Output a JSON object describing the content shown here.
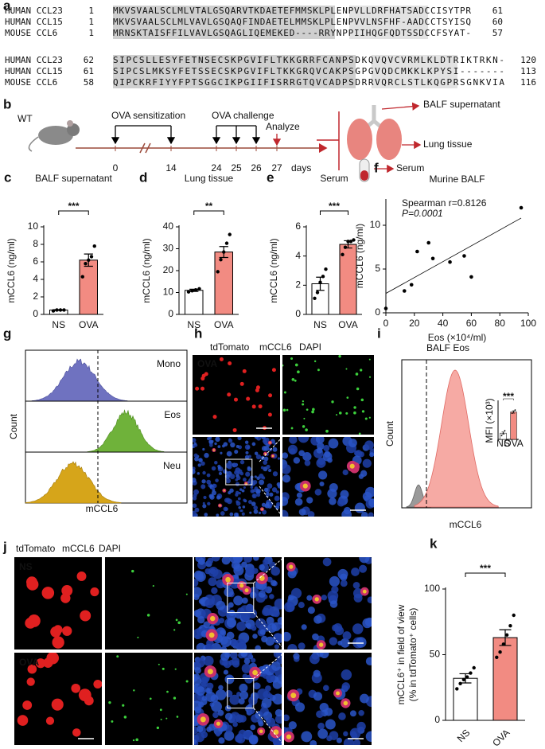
{
  "figure": {
    "alignment": {
      "label": "a",
      "blocks": [
        [
          {
            "name": "HUMAN CCL23",
            "start": "1",
            "seq": "MKVSVAALSCLMLVTALGSQARVTKDAETEFMMSKLPLENPVLLDRFHATSADCCISYTPR",
            "end": "61"
          },
          {
            "name": "HUMAN CCL15",
            "start": "1",
            "seq": "MKVSVAALSCLMLVAVLGSQAQFINDAETELMMSKLPLENPVVLNSFHF-AADCCTSYISQ",
            "end": "60"
          },
          {
            "name": "MOUSE CCL6",
            "start": "1",
            "seq": "MRNSKTAISFFILVAVLGSQAGLIQEMEKED----RRYNPPIIHQGFQDTSSDCCFSYAT-",
            "end": "57"
          }
        ],
        [
          {
            "name": "HUMAN CCL23",
            "start": "62",
            "seq": "SIPCSLLESYFETNSECSKPGVIFLTKKGRRFCANPSDKQVQVCVRMLKLDTRIKTRKN-",
            "end": "120"
          },
          {
            "name": "HUMAN CCL15",
            "start": "61",
            "seq": "SIPCSLMKSYFETSSECSKPGVIFLTKKGRQVCAKPSGPGVQDCMKKLKPYSI-------",
            "end": "113"
          },
          {
            "name": "MOUSE CCL6",
            "start": "58",
            "seq": "QIPCKRFIYYFPTSGGCIKPGIIFISRRGTQVCADPSDRRVQRCLSTLKQGPRSGNKVIA",
            "end": "116"
          }
        ]
      ]
    },
    "timeline": {
      "label": "b",
      "mouse": "WT",
      "sensitization": "OVA sensitization",
      "challenge": "OVA challenge",
      "analyze": "Analyze",
      "days": [
        "0",
        "14",
        "24",
        "25",
        "26",
        "27"
      ],
      "unit": "days",
      "outputs": [
        "BALF supernatant",
        "Lung tissue",
        "Serum"
      ]
    },
    "flow_g": {
      "label": "g",
      "populations": [
        "Mono",
        "Eos",
        "Neu"
      ],
      "ylabel": "Count",
      "xlabel": "mCCL6"
    },
    "staining_h": {
      "label": "h",
      "channels": [
        "tdTomato",
        "mCCL6",
        "DAPI"
      ],
      "group": "OVA"
    },
    "flow_i": {
      "label": "i",
      "title": "BALF Eos",
      "ylabel": "Count",
      "xlabel": "mCCL6"
    },
    "staining_j": {
      "label": "j",
      "channels": [
        "tdTomato",
        "mCCL6",
        "DAPI"
      ],
      "groups": [
        "NS",
        "OVA"
      ]
    }
  },
  "chart_data": [
    {
      "type": "bar",
      "label": "c",
      "title": "BALF supernatant",
      "ylabel": "mCCL6 (ng/ml)",
      "categories": [
        "NS",
        "OVA"
      ],
      "values": [
        0.5,
        6.2
      ],
      "errors": [
        0.05,
        0.7
      ],
      "points": [
        [
          0.4,
          0.5,
          0.5,
          0.5
        ],
        [
          4.3,
          5.8,
          6.2,
          6.6,
          7.8
        ]
      ],
      "colors": [
        "#ffffff",
        "#f28b82"
      ],
      "significance": "***",
      "ylim": [
        0,
        10
      ],
      "yticks": [
        0,
        2,
        4,
        6,
        8,
        10
      ]
    },
    {
      "type": "bar",
      "label": "d",
      "title": "Lung tissue",
      "ylabel": "mCCL6 (ng/ml)",
      "categories": [
        "NS",
        "OVA"
      ],
      "values": [
        11,
        28.5
      ],
      "errors": [
        0.5,
        2.5
      ],
      "points": [
        [
          10.3,
          10.8,
          11.2,
          11.7
        ],
        [
          19.5,
          25,
          28.5,
          32.5,
          36.5
        ]
      ],
      "colors": [
        "#ffffff",
        "#f28b82"
      ],
      "significance": "**",
      "ylim": [
        0,
        40
      ],
      "yticks": [
        0,
        10,
        20,
        30,
        40
      ]
    },
    {
      "type": "bar",
      "label": "e",
      "title": "Serum",
      "ylabel": "mCCL6 (ng/ml)",
      "categories": [
        "NS",
        "OVA"
      ],
      "values": [
        2.1,
        4.8
      ],
      "errors": [
        0.45,
        0.25
      ],
      "points": [
        [
          1.1,
          1.5,
          2.2,
          2.6,
          3.1
        ],
        [
          4.1,
          4.6,
          5.0,
          5.0,
          5.1
        ]
      ],
      "colors": [
        "#ffffff",
        "#f28b82"
      ],
      "significance": "***",
      "ylim": [
        0,
        6
      ],
      "yticks": [
        0,
        2,
        4,
        6
      ]
    },
    {
      "type": "scatter",
      "label": "f",
      "title": "Murine BALF",
      "xlabel": "Eos (×10⁴/ml)",
      "ylabel": "mCCL6 (ng/ml)",
      "annotations": [
        "Spearman r=0.8126",
        "P=0.0001"
      ],
      "x": [
        0,
        13,
        18,
        22,
        30,
        33,
        45,
        55,
        60,
        95
      ],
      "values": [
        0.5,
        2.5,
        3.2,
        7,
        8,
        6.2,
        5.8,
        6.5,
        4.1,
        12
      ],
      "xlim": [
        0,
        100
      ],
      "ylim": [
        0,
        13
      ],
      "xticks": [
        0,
        20,
        40,
        60,
        80,
        100
      ],
      "yticks": [
        0,
        5,
        10
      ]
    },
    {
      "type": "bar",
      "ylabel": "MFI (×10³)",
      "categories": [
        "NS",
        "OVA"
      ],
      "values": [
        0.5,
        2.2
      ],
      "errors": [
        0.1,
        0.1
      ],
      "points": [
        [
          0.3,
          0.5,
          0.7
        ],
        [
          2.1,
          2.2,
          2.35
        ]
      ],
      "colors": [
        "#ffffff",
        "#f28b82"
      ],
      "significance": "***",
      "ylim": [
        0,
        3
      ]
    },
    {
      "type": "bar",
      "label": "k",
      "ylabel": [
        "mCCL6⁺ in field of view",
        "(% in tdTomato⁺ cells)"
      ],
      "categories": [
        "NS",
        "OVA"
      ],
      "values": [
        32,
        63
      ],
      "errors": [
        3.5,
        6
      ],
      "points": [
        [
          24,
          28,
          31,
          33,
          36,
          40
        ],
        [
          48,
          52,
          58,
          65,
          72,
          80
        ]
      ],
      "colors": [
        "#ffffff",
        "#f28b82"
      ],
      "significance": "***",
      "ylim": [
        0,
        100
      ],
      "yticks": [
        0,
        50,
        100
      ]
    }
  ]
}
